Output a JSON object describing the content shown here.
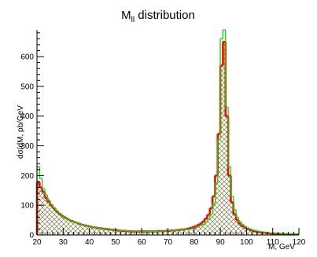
{
  "chart_data": {
    "type": "histogram",
    "title_main": "M",
    "title_sub": "ll",
    "title_rest": " distribution",
    "xlabel": "M, GeV",
    "ylabel": "dσ/dM, pb/GeV",
    "xlim": [
      20,
      120
    ],
    "ylim": [
      0,
      690
    ],
    "x_ticks": [
      20,
      30,
      40,
      50,
      60,
      70,
      80,
      90,
      100,
      110,
      120
    ],
    "y_ticks": [
      0,
      100,
      200,
      300,
      400,
      500,
      600
    ],
    "bin_width": 1,
    "colors": {
      "red": "#ff0000",
      "green": "#00e000",
      "hatch": "#7a7a4a",
      "axis": "#000000"
    },
    "red_series": {
      "bins": [
        [
          20,
          177
        ],
        [
          21,
          160
        ],
        [
          22,
          145
        ],
        [
          23,
          125
        ],
        [
          24,
          112
        ],
        [
          25,
          100
        ],
        [
          26,
          90
        ],
        [
          27,
          80
        ],
        [
          28,
          72
        ],
        [
          29,
          66
        ],
        [
          30,
          60
        ],
        [
          31,
          55
        ],
        [
          32,
          50
        ],
        [
          33,
          47
        ],
        [
          34,
          43
        ],
        [
          35,
          40
        ],
        [
          36,
          37
        ],
        [
          37,
          34
        ],
        [
          38,
          32
        ],
        [
          39,
          30
        ],
        [
          40,
          28
        ],
        [
          41,
          26
        ],
        [
          42,
          25
        ],
        [
          43,
          23
        ],
        [
          44,
          22
        ],
        [
          45,
          21
        ],
        [
          46,
          20
        ],
        [
          47,
          19
        ],
        [
          48,
          18
        ],
        [
          49,
          17
        ],
        [
          50,
          16
        ],
        [
          51,
          15
        ],
        [
          52,
          14
        ],
        [
          53,
          14
        ],
        [
          54,
          13
        ],
        [
          55,
          13
        ],
        [
          56,
          12
        ],
        [
          57,
          12
        ],
        [
          58,
          12
        ],
        [
          59,
          12
        ],
        [
          60,
          12
        ],
        [
          61,
          12
        ],
        [
          62,
          12
        ],
        [
          63,
          12
        ],
        [
          64,
          12
        ],
        [
          65,
          12
        ],
        [
          66,
          13
        ],
        [
          67,
          13
        ],
        [
          68,
          13
        ],
        [
          69,
          14
        ],
        [
          70,
          14
        ],
        [
          71,
          15
        ],
        [
          72,
          15
        ],
        [
          73,
          16
        ],
        [
          74,
          17
        ],
        [
          75,
          18
        ],
        [
          76,
          19
        ],
        [
          77,
          21
        ],
        [
          78,
          23
        ],
        [
          79,
          26
        ],
        [
          80,
          29
        ],
        [
          81,
          33
        ],
        [
          82,
          38
        ],
        [
          83,
          45
        ],
        [
          84,
          55
        ],
        [
          85,
          68
        ],
        [
          86,
          90
        ],
        [
          87,
          130
        ],
        [
          88,
          200
        ],
        [
          89,
          340
        ],
        [
          90,
          570
        ],
        [
          91,
          650
        ],
        [
          92,
          400
        ],
        [
          93,
          200
        ],
        [
          94,
          110
        ],
        [
          95,
          70
        ],
        [
          96,
          50
        ],
        [
          97,
          38
        ],
        [
          98,
          30
        ],
        [
          99,
          25
        ],
        [
          100,
          20
        ],
        [
          101,
          17
        ],
        [
          102,
          14
        ],
        [
          103,
          12
        ],
        [
          104,
          10
        ],
        [
          105,
          9
        ],
        [
          106,
          8
        ],
        [
          107,
          7
        ],
        [
          108,
          6
        ],
        [
          109,
          5
        ],
        [
          110,
          5
        ],
        [
          111,
          4
        ],
        [
          112,
          4
        ],
        [
          113,
          3
        ],
        [
          114,
          3
        ],
        [
          115,
          3
        ],
        [
          116,
          2
        ],
        [
          117,
          2
        ],
        [
          118,
          2
        ],
        [
          119,
          2
        ]
      ]
    },
    "green_series": {
      "bins": [
        [
          20,
          230
        ],
        [
          21,
          190
        ],
        [
          22,
          155
        ],
        [
          23,
          135
        ],
        [
          24,
          117
        ],
        [
          25,
          103
        ],
        [
          26,
          92
        ],
        [
          27,
          82
        ],
        [
          28,
          74
        ],
        [
          29,
          67
        ],
        [
          30,
          61
        ],
        [
          31,
          56
        ],
        [
          32,
          51
        ],
        [
          33,
          47
        ],
        [
          34,
          43
        ],
        [
          35,
          40
        ],
        [
          36,
          37
        ],
        [
          37,
          34
        ],
        [
          38,
          32
        ],
        [
          39,
          30
        ],
        [
          40,
          28
        ],
        [
          41,
          26
        ],
        [
          42,
          25
        ],
        [
          43,
          23
        ],
        [
          44,
          22
        ],
        [
          45,
          21
        ],
        [
          46,
          20
        ],
        [
          47,
          19
        ],
        [
          48,
          18
        ],
        [
          49,
          17
        ],
        [
          50,
          16
        ],
        [
          51,
          15
        ],
        [
          52,
          15
        ],
        [
          53,
          14
        ],
        [
          54,
          14
        ],
        [
          55,
          13
        ],
        [
          56,
          13
        ],
        [
          57,
          13
        ],
        [
          58,
          12
        ],
        [
          59,
          12
        ],
        [
          60,
          12
        ],
        [
          61,
          12
        ],
        [
          62,
          12
        ],
        [
          63,
          12
        ],
        [
          64,
          12
        ],
        [
          65,
          12
        ],
        [
          66,
          12
        ],
        [
          67,
          13
        ],
        [
          68,
          13
        ],
        [
          69,
          13
        ],
        [
          70,
          14
        ],
        [
          71,
          14
        ],
        [
          72,
          15
        ],
        [
          73,
          15
        ],
        [
          74,
          16
        ],
        [
          75,
          17
        ],
        [
          76,
          18
        ],
        [
          77,
          19
        ],
        [
          78,
          20
        ],
        [
          79,
          22
        ],
        [
          80,
          24
        ],
        [
          81,
          27
        ],
        [
          82,
          31
        ],
        [
          83,
          36
        ],
        [
          84,
          43
        ],
        [
          85,
          53
        ],
        [
          86,
          70
        ],
        [
          87,
          105
        ],
        [
          88,
          175
        ],
        [
          89,
          320
        ],
        [
          90,
          660
        ],
        [
          91,
          690
        ],
        [
          92,
          430
        ],
        [
          93,
          230
        ],
        [
          94,
          130
        ],
        [
          95,
          85
        ],
        [
          96,
          60
        ],
        [
          97,
          45
        ],
        [
          98,
          35
        ],
        [
          99,
          29
        ],
        [
          100,
          24
        ],
        [
          101,
          20
        ],
        [
          102,
          17
        ],
        [
          103,
          15
        ],
        [
          104,
          13
        ],
        [
          105,
          11
        ],
        [
          106,
          10
        ],
        [
          107,
          9
        ],
        [
          108,
          8
        ],
        [
          109,
          7
        ],
        [
          110,
          7
        ],
        [
          111,
          6
        ],
        [
          112,
          6
        ],
        [
          113,
          5
        ],
        [
          114,
          5
        ],
        [
          115,
          5
        ],
        [
          116,
          4
        ],
        [
          117,
          4
        ],
        [
          118,
          4
        ],
        [
          119,
          4
        ]
      ]
    }
  }
}
